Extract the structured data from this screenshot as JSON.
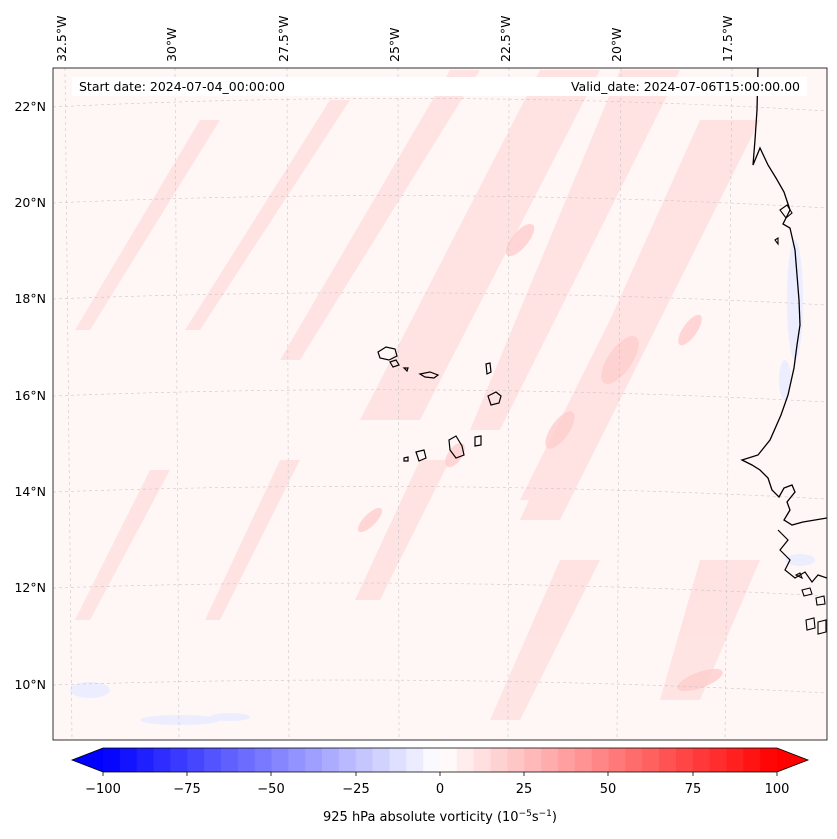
{
  "map": {
    "start_date": "Start date: 2024-07-04_00:00:00",
    "valid_date": "Valid_date: 2024-07-06T15:00:00.00",
    "lon_labels": [
      "32.5°W",
      "30°W",
      "27.5°W",
      "25°W",
      "22.5°W",
      "20°W",
      "17.5°W"
    ],
    "lat_labels": [
      "22°N",
      "20°N",
      "18°N",
      "16°N",
      "14°N",
      "12°N",
      "10°N"
    ],
    "colorbar": {
      "ticks": [
        "−100",
        "−75",
        "−50",
        "−25",
        "0",
        "25",
        "50",
        "75",
        "100"
      ],
      "label_prefix": "925 hPa absolute vorticity (10",
      "label_exp1": "−5",
      "label_mid": "s",
      "label_exp2": "−1",
      "label_suffix": ")",
      "min_color": "#0000ff",
      "mid_color": "#ffffff",
      "max_color": "#ff0000",
      "levels": 40
    },
    "field_colors": {
      "background": "#fff7f7",
      "light_red": "#ffe3e3",
      "medium_red": "#ffd2d2",
      "light_blue": "#eef0ff",
      "coast": "#000000"
    }
  }
}
